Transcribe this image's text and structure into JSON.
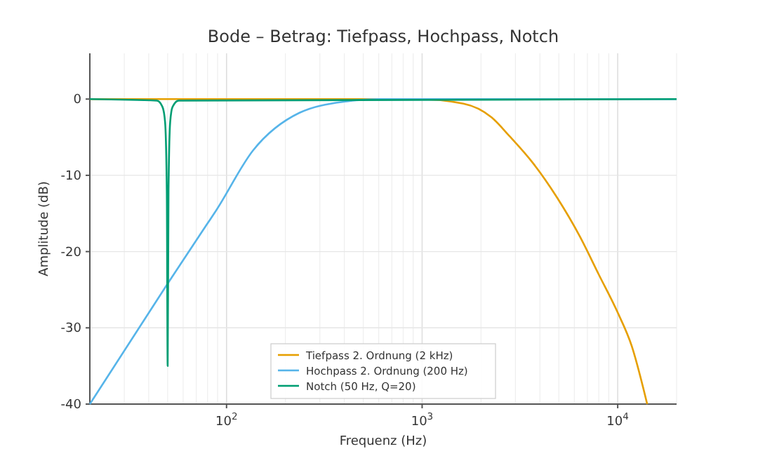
{
  "chart_data": {
    "type": "line",
    "title": "Bode – Betrag: Tiefpass, Hochpass, Notch",
    "xlabel": "Frequenz (Hz)",
    "ylabel": "Amplitude (dB)",
    "log": "x",
    "xlim": [
      20,
      20000
    ],
    "ylim": [
      -40,
      6
    ],
    "xticks": [
      {
        "value": 100,
        "label": "10$^{2}$"
      },
      {
        "value": 1000,
        "label": "10$^{3}$"
      },
      {
        "value": 10000,
        "label": "10$^{4}$"
      }
    ],
    "yticks": [
      -40,
      -30,
      -20,
      -10,
      0
    ],
    "grid": true,
    "legend": "bottom",
    "line_style": "solid",
    "marker": "none",
    "series": [
      {
        "name": "Tiefpass 2. Ordnung (2 kHz)",
        "color": "#e69f00",
        "x": [
          20,
          200,
          944,
          1626,
          2265,
          2806,
          3715,
          4920,
          6400,
          8000,
          10000,
          11800,
          14150
        ],
        "values": [
          0,
          0,
          0,
          -0.6,
          -2.4,
          -4.9,
          -8.5,
          -13,
          -18,
          -23,
          -28,
          -32.4,
          -40
        ]
      },
      {
        "name": "Hochpass 2. Ordnung (200 Hz)",
        "color": "#56b4e9",
        "x": [
          20,
          50,
          79,
          88,
          137,
          236,
          413,
          600,
          1000,
          20000
        ],
        "values": [
          -40,
          -24.2,
          -16.5,
          -14.7,
          -6.7,
          -1.8,
          -0.3,
          0,
          0,
          0
        ]
      },
      {
        "name": "Notch (50 Hz, Q=20)",
        "color": "#009e73",
        "x": [
          20,
          44,
          47,
          48.5,
          49.5,
          50,
          50.5,
          51.5,
          53,
          57,
          20000
        ],
        "values": [
          0,
          -0.2,
          -1,
          -3,
          -12,
          -35,
          -12,
          -3,
          -1,
          -0.2,
          0
        ]
      }
    ]
  }
}
